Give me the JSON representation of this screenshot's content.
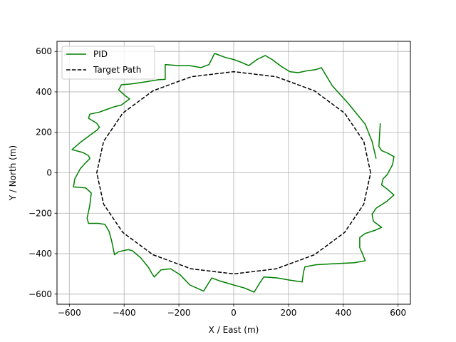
{
  "chart_data": {
    "type": "line",
    "title": "",
    "xlabel": "X / East (m)",
    "ylabel": "Y / North (m)",
    "xlim": [
      -645,
      645
    ],
    "ylim": [
      -650,
      650
    ],
    "xticks": [
      -600,
      -400,
      -200,
      0,
      200,
      400,
      600
    ],
    "yticks": [
      -600,
      -400,
      -200,
      0,
      200,
      400,
      600
    ],
    "xtick_labels": [
      "−600",
      "−400",
      "−200",
      "0",
      "200",
      "400",
      "600"
    ],
    "ytick_labels": [
      "−600",
      "−400",
      "−200",
      "0",
      "200",
      "400",
      "600"
    ],
    "grid": true,
    "legend_position": "upper-left",
    "series": [
      {
        "name": "PID",
        "color": "#008000",
        "dash": "solid",
        "points": [
          [
            535,
            245
          ],
          [
            530,
            130
          ],
          [
            540,
            110
          ],
          [
            565,
            95
          ],
          [
            585,
            80
          ],
          [
            580,
            40
          ],
          [
            560,
            -10
          ],
          [
            545,
            -30
          ],
          [
            540,
            -60
          ],
          [
            560,
            -80
          ],
          [
            585,
            -110
          ],
          [
            560,
            -140
          ],
          [
            520,
            -175
          ],
          [
            505,
            -205
          ],
          [
            510,
            -240
          ],
          [
            540,
            -270
          ],
          [
            515,
            -285
          ],
          [
            480,
            -300
          ],
          [
            460,
            -320
          ],
          [
            460,
            -370
          ],
          [
            470,
            -400
          ],
          [
            480,
            -435
          ],
          [
            440,
            -445
          ],
          [
            360,
            -450
          ],
          [
            300,
            -455
          ],
          [
            260,
            -465
          ],
          [
            255,
            -490
          ],
          [
            250,
            -540
          ],
          [
            200,
            -530
          ],
          [
            160,
            -520
          ],
          [
            110,
            -515
          ],
          [
            95,
            -545
          ],
          [
            75,
            -590
          ],
          [
            40,
            -570
          ],
          [
            0,
            -555
          ],
          [
            -50,
            -535
          ],
          [
            -80,
            -520
          ],
          [
            -110,
            -585
          ],
          [
            -160,
            -555
          ],
          [
            -195,
            -505
          ],
          [
            -230,
            -475
          ],
          [
            -265,
            -480
          ],
          [
            -290,
            -515
          ],
          [
            -300,
            -495
          ],
          [
            -310,
            -470
          ],
          [
            -340,
            -420
          ],
          [
            -370,
            -385
          ],
          [
            -385,
            -380
          ],
          [
            -420,
            -390
          ],
          [
            -435,
            -405
          ],
          [
            -445,
            -340
          ],
          [
            -455,
            -290
          ],
          [
            -470,
            -255
          ],
          [
            -495,
            -250
          ],
          [
            -530,
            -250
          ],
          [
            -535,
            -225
          ],
          [
            -525,
            -160
          ],
          [
            -520,
            -100
          ],
          [
            -540,
            -75
          ],
          [
            -565,
            -72
          ],
          [
            -585,
            -70
          ],
          [
            -580,
            -30
          ],
          [
            -560,
            20
          ],
          [
            -540,
            50
          ],
          [
            -525,
            70
          ],
          [
            -530,
            85
          ],
          [
            -550,
            100
          ],
          [
            -590,
            115
          ],
          [
            -560,
            150
          ],
          [
            -530,
            180
          ],
          [
            -500,
            210
          ],
          [
            -490,
            225
          ],
          [
            -500,
            245
          ],
          [
            -530,
            270
          ],
          [
            -525,
            290
          ],
          [
            -490,
            300
          ],
          [
            -470,
            310
          ],
          [
            -440,
            325
          ],
          [
            -410,
            335
          ],
          [
            -395,
            350
          ],
          [
            -380,
            365
          ],
          [
            -395,
            380
          ],
          [
            -420,
            410
          ],
          [
            -410,
            435
          ],
          [
            -370,
            440
          ],
          [
            -320,
            450
          ],
          [
            -275,
            460
          ],
          [
            -250,
            462
          ],
          [
            -250,
            490
          ],
          [
            -250,
            535
          ],
          [
            -200,
            530
          ],
          [
            -160,
            530
          ],
          [
            -120,
            520
          ],
          [
            -90,
            535
          ],
          [
            -70,
            590
          ],
          [
            -30,
            570
          ],
          [
            0,
            560
          ],
          [
            30,
            545
          ],
          [
            55,
            530
          ],
          [
            85,
            560
          ],
          [
            115,
            580
          ],
          [
            140,
            560
          ],
          [
            175,
            525
          ],
          [
            205,
            500
          ],
          [
            235,
            495
          ],
          [
            270,
            505
          ],
          [
            300,
            510
          ],
          [
            320,
            520
          ],
          [
            360,
            430
          ],
          [
            420,
            340
          ],
          [
            480,
            240
          ],
          [
            505,
            155
          ],
          [
            520,
            70
          ]
        ]
      },
      {
        "name": "Target Path",
        "color": "#000000",
        "dash": "dashed",
        "points": [
          [
            500,
            0
          ],
          [
            475,
            155
          ],
          [
            405,
            295
          ],
          [
            295,
            405
          ],
          [
            155,
            475
          ],
          [
            0,
            500
          ],
          [
            -155,
            475
          ],
          [
            -295,
            405
          ],
          [
            -405,
            295
          ],
          [
            -475,
            155
          ],
          [
            -500,
            0
          ],
          [
            -475,
            -155
          ],
          [
            -405,
            -295
          ],
          [
            -295,
            -405
          ],
          [
            -155,
            -475
          ],
          [
            0,
            -500
          ],
          [
            155,
            -475
          ],
          [
            295,
            -405
          ],
          [
            405,
            -295
          ],
          [
            475,
            -155
          ],
          [
            500,
            0
          ]
        ]
      }
    ]
  }
}
